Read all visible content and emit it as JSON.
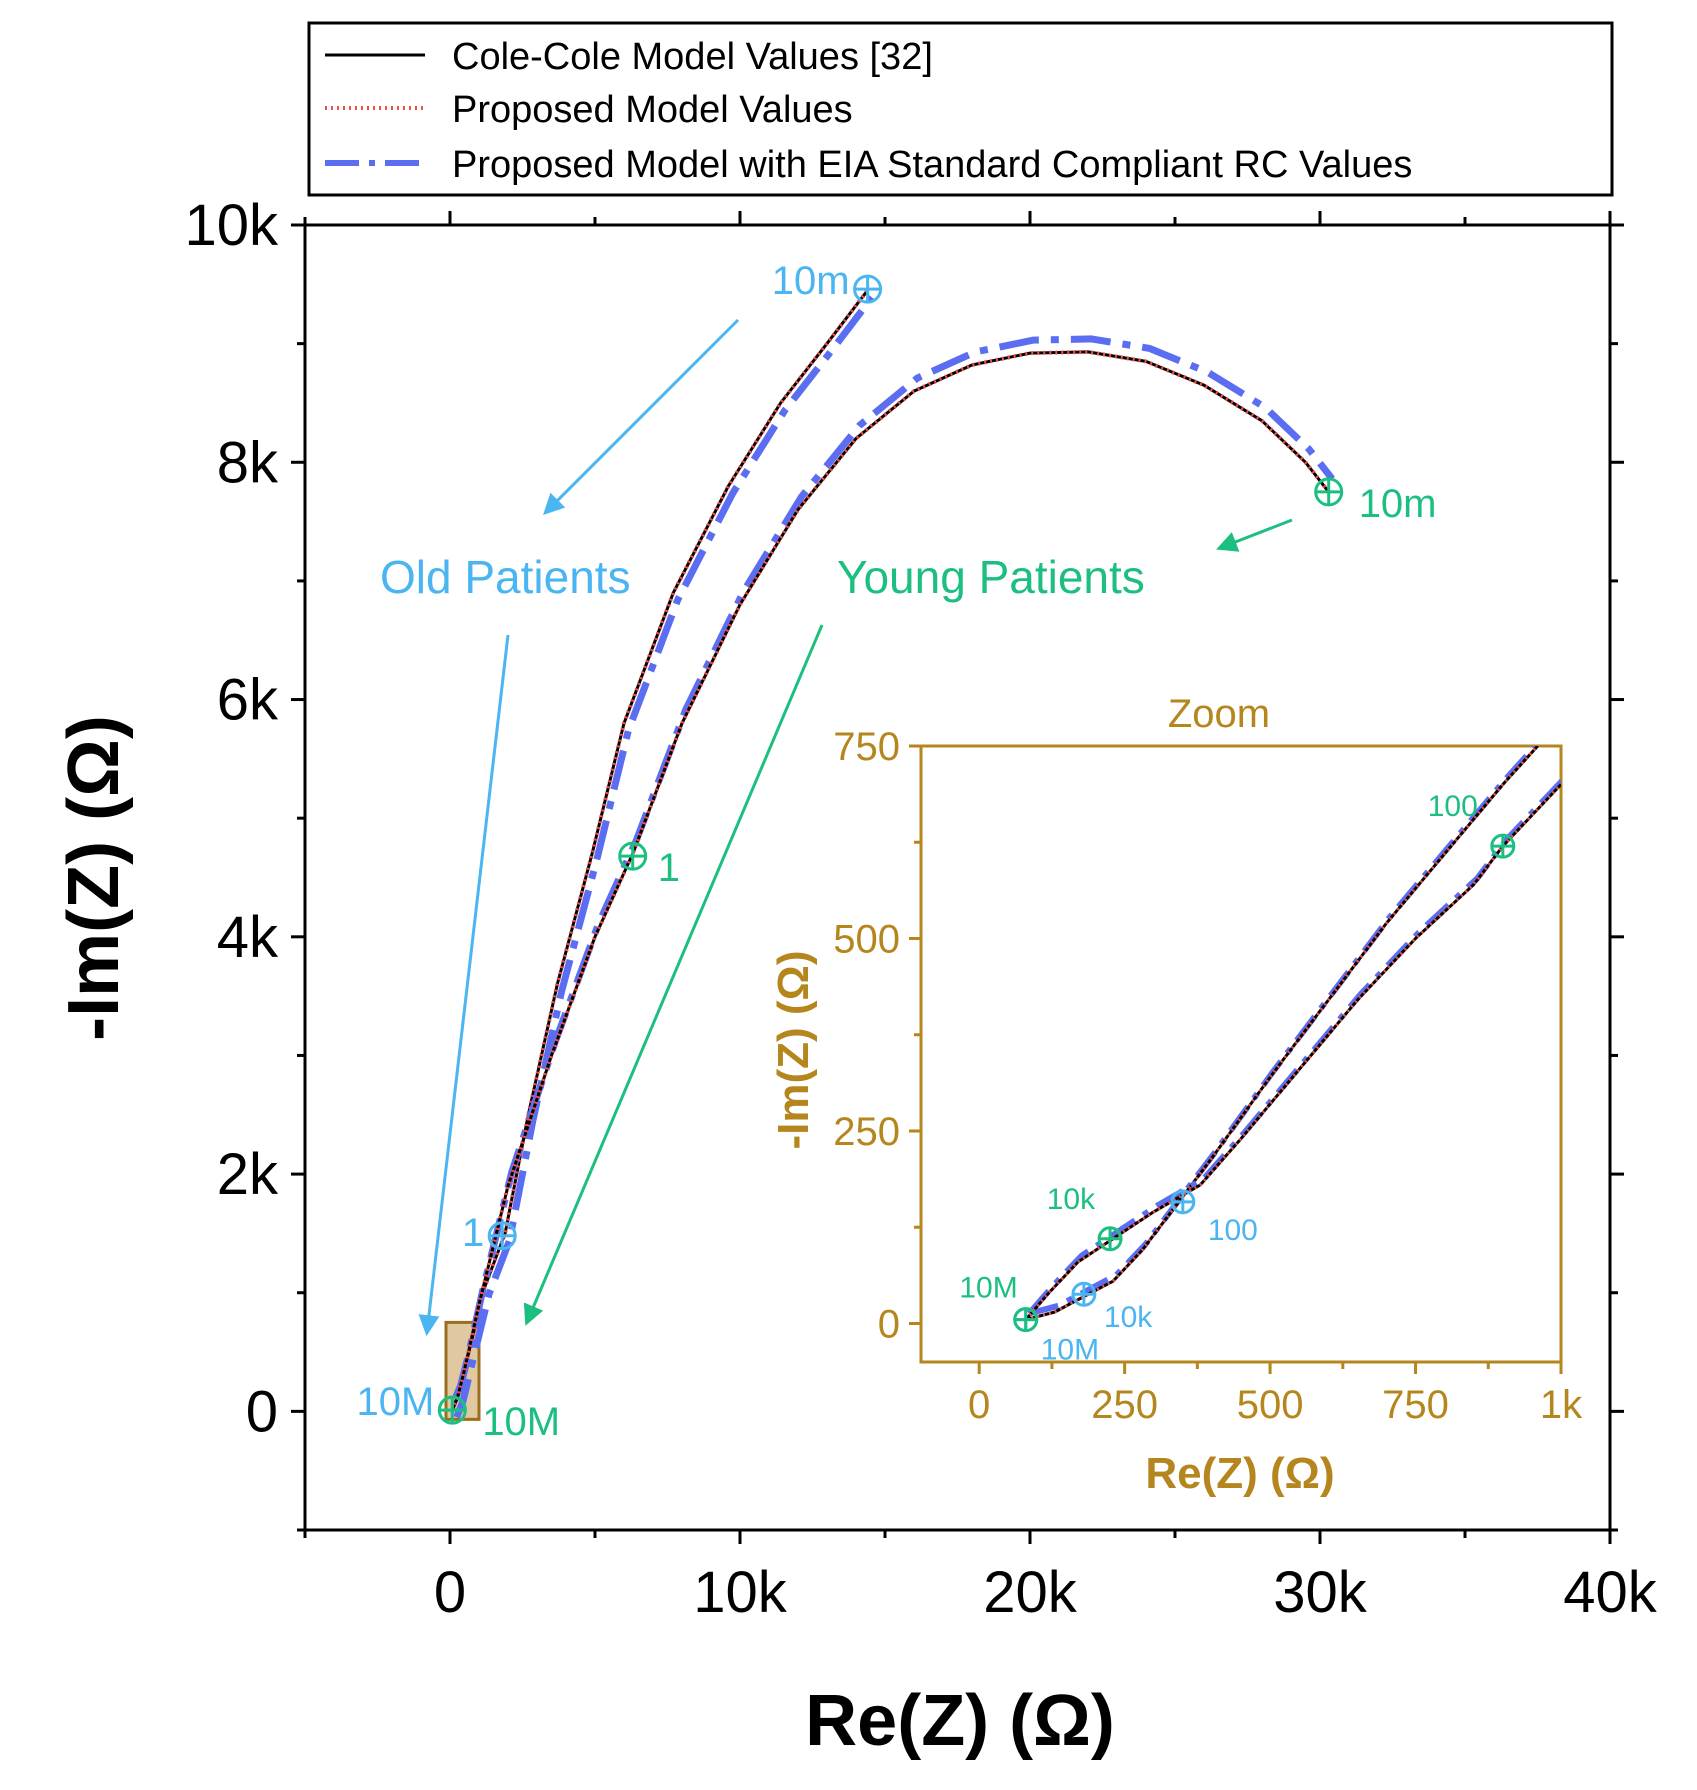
{
  "chart_data": {
    "type": "line",
    "title": "",
    "xlabel": "Re(Z) (Ω)",
    "ylabel": "-Im(Z) (Ω)",
    "xlim": [
      -5000,
      40000
    ],
    "ylim": [
      -1000,
      10000
    ],
    "xticks": [
      {
        "value": 0,
        "label": "0"
      },
      {
        "value": 10000,
        "label": "10k"
      },
      {
        "value": 20000,
        "label": "20k"
      },
      {
        "value": 30000,
        "label": "30k"
      },
      {
        "value": 40000,
        "label": "40k"
      }
    ],
    "yticks": [
      {
        "value": 0,
        "label": "0"
      },
      {
        "value": 2000,
        "label": "2k"
      },
      {
        "value": 4000,
        "label": "4k"
      },
      {
        "value": 6000,
        "label": "6k"
      },
      {
        "value": 8000,
        "label": "8k"
      },
      {
        "value": 10000,
        "label": "10k"
      }
    ],
    "legend": {
      "placement": "top",
      "entries": [
        {
          "label": "Cole-Cole Model Values [32]",
          "style": "solid",
          "color": "#000000"
        },
        {
          "label": "Proposed Model Values",
          "style": "dotted",
          "color": "#f0504a"
        },
        {
          "label": "Proposed Model with EIA Standard Compliant RC Values",
          "style": "dash-dot",
          "color": "#5b6ef2"
        }
      ]
    },
    "series": [
      {
        "name": "Old Patients",
        "color": "#4bb5f2",
        "points": [
          [
            80,
            10
          ],
          [
            300,
            150
          ],
          [
            700,
            550
          ],
          [
            1200,
            1050
          ],
          [
            1900,
            1500
          ],
          [
            2700,
            2500
          ],
          [
            3700,
            3600
          ],
          [
            4900,
            4700
          ],
          [
            6000,
            5800
          ],
          [
            7700,
            6900
          ],
          [
            9600,
            7800
          ],
          [
            11400,
            8500
          ],
          [
            13000,
            9000
          ],
          [
            14400,
            9450
          ]
        ],
        "eia_offset": [
          150,
          -60
        ],
        "markers": [
          {
            "x": 80,
            "y": 10,
            "label": "10M"
          },
          {
            "x": 1800,
            "y": 1480,
            "label": "1"
          },
          {
            "x": 14400,
            "y": 9460,
            "label": "10m"
          }
        ]
      },
      {
        "name": "Young Patients",
        "color": "#1dbf80",
        "points": [
          [
            80,
            10
          ],
          [
            250,
            110
          ],
          [
            500,
            350
          ],
          [
            1000,
            900
          ],
          [
            2000,
            1900
          ],
          [
            3500,
            3000
          ],
          [
            5000,
            4000
          ],
          [
            6300,
            4700
          ],
          [
            8000,
            5800
          ],
          [
            10000,
            6800
          ],
          [
            12000,
            7600
          ],
          [
            14000,
            8200
          ],
          [
            16000,
            8600
          ],
          [
            18000,
            8820
          ],
          [
            20000,
            8920
          ],
          [
            22000,
            8930
          ],
          [
            24000,
            8850
          ],
          [
            26000,
            8650
          ],
          [
            28000,
            8350
          ],
          [
            29500,
            8000
          ],
          [
            30300,
            7750
          ]
        ],
        "eia_offset": [
          120,
          110
        ],
        "markers": [
          {
            "x": 80,
            "y": 10,
            "label": "10M"
          },
          {
            "x": 6300,
            "y": 4680,
            "label": "1"
          },
          {
            "x": 30300,
            "y": 7750,
            "label": "10m"
          }
        ]
      }
    ],
    "annotations": [
      {
        "text": "Old Patients",
        "color": "#4bb5f2"
      },
      {
        "text": "Young Patients",
        "color": "#1dbf80"
      }
    ],
    "zoom_region": {
      "x": [
        0,
        1000
      ],
      "y": [
        0,
        750
      ]
    },
    "inset": {
      "title": "Zoom",
      "xlabel": "Re(Z) (Ω)",
      "ylabel": "-Im(Z) (Ω)",
      "xlim": [
        -100,
        1000
      ],
      "ylim": [
        -50,
        750
      ],
      "xticks": [
        {
          "value": 0,
          "label": "0"
        },
        {
          "value": 250,
          "label": "250"
        },
        {
          "value": 500,
          "label": "500"
        },
        {
          "value": 750,
          "label": "750"
        },
        {
          "value": 1000,
          "label": "1k"
        }
      ],
      "yticks": [
        {
          "value": 0,
          "label": "0"
        },
        {
          "value": 250,
          "label": "250"
        },
        {
          "value": 500,
          "label": "500"
        },
        {
          "value": 750,
          "label": "750"
        }
      ],
      "series": [
        {
          "name": "Old Patients",
          "color": "#4bb5f2",
          "points": [
            [
              80,
              5
            ],
            [
              130,
              15
            ],
            [
              180,
              35
            ],
            [
              230,
              55
            ],
            [
              280,
              95
            ],
            [
              340,
              155
            ],
            [
              400,
              215
            ],
            [
              500,
              320
            ],
            [
              600,
              420
            ],
            [
              700,
              520
            ],
            [
              800,
              610
            ],
            [
              900,
              700
            ],
            [
              960,
              750
            ]
          ],
          "markers": [
            {
              "x": 80,
              "y": 5,
              "label": "10M"
            },
            {
              "x": 180,
              "y": 38,
              "label": "10k"
            },
            {
              "x": 350,
              "y": 158,
              "label": "100"
            }
          ]
        },
        {
          "name": "Young Patients",
          "color": "#1dbf80",
          "points": [
            [
              80,
              5
            ],
            [
              120,
              40
            ],
            [
              170,
              80
            ],
            [
              230,
              110
            ],
            [
              300,
              145
            ],
            [
              380,
              180
            ],
            [
              450,
              240
            ],
            [
              550,
              330
            ],
            [
              650,
              420
            ],
            [
              750,
              500
            ],
            [
              850,
              570
            ],
            [
              900,
              620
            ],
            [
              1000,
              700
            ]
          ],
          "markers": [
            {
              "x": 80,
              "y": 5,
              "label": "10M"
            },
            {
              "x": 225,
              "y": 110,
              "label": "10k"
            },
            {
              "x": 900,
              "y": 620,
              "label": "100"
            }
          ]
        }
      ]
    }
  },
  "colors": {
    "old": "#4bb5f2",
    "young": "#1dbf80",
    "inset_axis": "#b5861e",
    "cole": "#000000",
    "proposed": "#f0504a",
    "eia": "#5b6ef2"
  }
}
